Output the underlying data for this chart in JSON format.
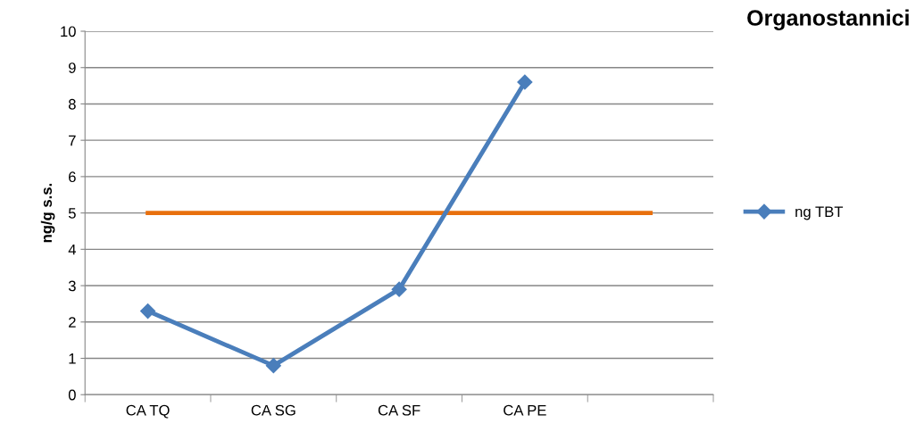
{
  "chart_data": {
    "type": "line",
    "title": "Organostannici",
    "ylabel": "ng/g s.s.",
    "categories": [
      "CA TQ",
      "CA SG",
      "CA SF",
      "CA PE",
      null
    ],
    "series": [
      {
        "name": "ng TBT",
        "color": "#4a7ebb",
        "values": [
          2.3,
          0.8,
          2.9,
          8.6,
          null
        ],
        "marker": "diamond"
      },
      {
        "color": "#e8700e",
        "values": [
          5,
          5,
          5,
          5,
          5
        ],
        "marker": "none"
      }
    ],
    "ylim": [
      0,
      10
    ],
    "yticks": [
      0,
      1,
      2,
      3,
      4,
      5,
      6,
      7,
      8,
      9,
      10
    ],
    "grid": "y",
    "legend": "right"
  }
}
